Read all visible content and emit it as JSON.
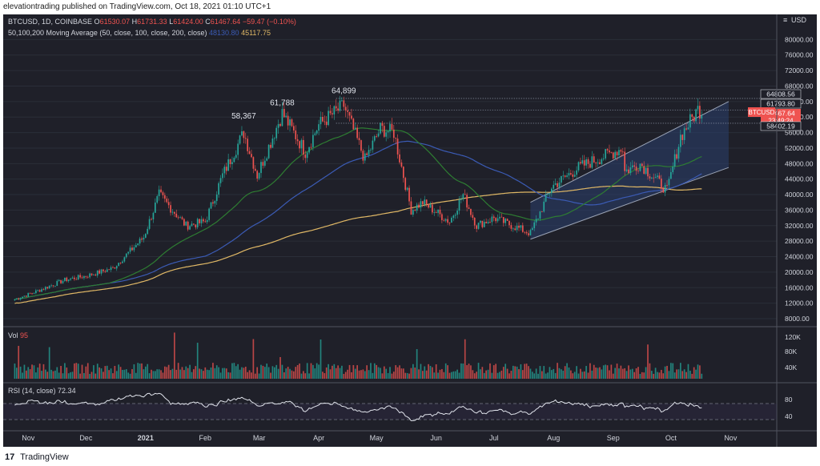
{
  "header": {
    "published": "elevationtrading published on TradingView.com, Oct 18, 2021 01:10 UTC+1"
  },
  "footer": {
    "logo": "17",
    "brand": "TradingView"
  },
  "legend": {
    "symbol": "BTCUSD, 1D, COINBASE",
    "open_label": "O",
    "open": "61530.07",
    "high_label": "H",
    "high": "61731.33",
    "low_label": "L",
    "low": "61424.00",
    "close_label": "C",
    "close": "61467.64",
    "change": "−59.47 (−0.10%)",
    "ma_title": "50,100,200 Moving Average (50, close, 100, close, 200, close)",
    "ma50": "",
    "ma100": "48130.80",
    "ma200": "45117.75",
    "vol_label": "Vol",
    "vol_value": "95",
    "rsi_label": "RSI (14, close)",
    "rsi_value": "72.34"
  },
  "scale": {
    "currency": "USD",
    "currency_prefix": "≡"
  },
  "price_tags": {
    "symbol_tag": "BTCUSD",
    "current": "61467.64",
    "countdown": "23:49:24",
    "level_high": "64808.56",
    "level_mid": "61793.80",
    "level_low": "58402.19"
  },
  "colors": {
    "background": "#1f2029",
    "up": "#26a69a",
    "down": "#ef5350",
    "ma50": "#2e7d32",
    "ma100": "#3b5bb5",
    "ma200": "#e0b866",
    "channel_fill": "#2a3f6e"
  },
  "chart_data": [
    {
      "type": "candlestick",
      "title": "BTCUSD, 1D, COINBASE",
      "x": [
        "Nov",
        "Dec",
        "2021",
        "Feb",
        "Mar",
        "Apr",
        "May",
        "Jun",
        "Jul",
        "Aug",
        "Sep",
        "Oct",
        "Nov"
      ],
      "ylim": [
        8000,
        84000
      ],
      "yticks": [
        80000,
        76000,
        72000,
        68000,
        64000,
        60000,
        56000,
        52000,
        48000,
        44000,
        40000,
        36000,
        32000,
        28000,
        24000,
        20000,
        16000,
        12000,
        8000
      ],
      "close_path": [
        {
          "date": "2020-10-25",
          "value": 13000
        },
        {
          "date": "2020-11-05",
          "value": 15000
        },
        {
          "date": "2020-11-20",
          "value": 18000
        },
        {
          "date": "2020-12-01",
          "value": 19000
        },
        {
          "date": "2020-12-15",
          "value": 21000
        },
        {
          "date": "2020-12-31",
          "value": 29000
        },
        {
          "date": "2021-01-08",
          "value": 40000
        },
        {
          "date": "2021-01-22",
          "value": 32000
        },
        {
          "date": "2021-02-01",
          "value": 33000
        },
        {
          "date": "2021-02-10",
          "value": 45000
        },
        {
          "date": "2021-02-21",
          "value": 56000
        },
        {
          "date": "2021-02-28",
          "value": 45000
        },
        {
          "date": "2021-03-13",
          "value": 61000
        },
        {
          "date": "2021-03-25",
          "value": 51000
        },
        {
          "date": "2021-04-01",
          "value": 58000
        },
        {
          "date": "2021-04-14",
          "value": 63000
        },
        {
          "date": "2021-04-25",
          "value": 49000
        },
        {
          "date": "2021-05-03",
          "value": 57000
        },
        {
          "date": "2021-05-10",
          "value": 56000
        },
        {
          "date": "2021-05-19",
          "value": 36000
        },
        {
          "date": "2021-05-25",
          "value": 38000
        },
        {
          "date": "2021-06-08",
          "value": 33000
        },
        {
          "date": "2021-06-15",
          "value": 40000
        },
        {
          "date": "2021-06-22",
          "value": 32000
        },
        {
          "date": "2021-07-01",
          "value": 34000
        },
        {
          "date": "2021-07-20",
          "value": 30000
        },
        {
          "date": "2021-07-31",
          "value": 42000
        },
        {
          "date": "2021-08-14",
          "value": 47000
        },
        {
          "date": "2021-08-23",
          "value": 49000
        },
        {
          "date": "2021-09-06",
          "value": 52000
        },
        {
          "date": "2021-09-07",
          "value": 46000
        },
        {
          "date": "2021-09-15",
          "value": 48000
        },
        {
          "date": "2021-09-29",
          "value": 41000
        },
        {
          "date": "2021-10-06",
          "value": 55000
        },
        {
          "date": "2021-10-15",
          "value": 62000
        },
        {
          "date": "2021-10-17",
          "value": 61467.64
        }
      ],
      "annotations": [
        {
          "label": "58,367",
          "date": "2021-02-21",
          "value": 58367
        },
        {
          "label": "61,788",
          "date": "2021-03-13",
          "value": 61788
        },
        {
          "label": "64,899",
          "date": "2021-04-14",
          "value": 64899
        }
      ],
      "moving_averages": [
        {
          "name": "MA 50",
          "last": ""
        },
        {
          "name": "MA 100",
          "last": 48130.8
        },
        {
          "name": "MA 200",
          "last": 45117.75
        }
      ],
      "channel": {
        "upper": [
          {
            "date": "2021-07-20",
            "value": 38000
          },
          {
            "date": "2021-10-31",
            "value": 64000
          }
        ],
        "lower": [
          {
            "date": "2021-07-20",
            "value": 28500
          },
          {
            "date": "2021-10-31",
            "value": 47000
          }
        ]
      },
      "levels": [
        64808.56,
        61793.8,
        58402.19
      ],
      "last_price": 61467.64
    },
    {
      "type": "bar",
      "title": "Vol",
      "yticks": [
        "120K",
        "80K",
        "40K"
      ],
      "last_value": 95
    },
    {
      "type": "line",
      "title": "RSI (14, close)",
      "yticks": [
        80.0,
        40.0
      ],
      "bands": [
        70,
        30
      ],
      "last_value": 72.34
    }
  ]
}
